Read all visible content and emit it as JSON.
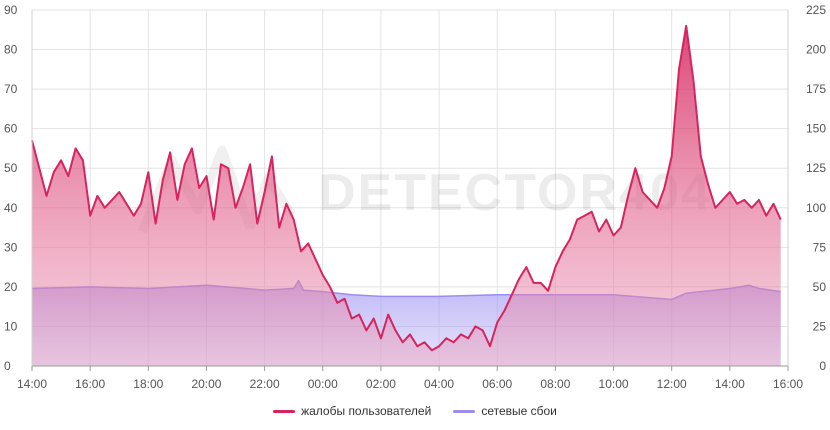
{
  "chart_data": {
    "type": "area",
    "title": "",
    "watermark": "DETECTOR404",
    "x_ticks": [
      "14:00",
      "16:00",
      "18:00",
      "20:00",
      "22:00",
      "00:00",
      "02:00",
      "04:00",
      "06:00",
      "08:00",
      "10:00",
      "12:00",
      "14:00",
      "16:00"
    ],
    "y_left_ticks": [
      "0",
      "10",
      "20",
      "30",
      "40",
      "50",
      "60",
      "70",
      "80",
      "90"
    ],
    "y_right_ticks": [
      "0",
      "25",
      "50",
      "75",
      "100",
      "125",
      "150",
      "175",
      "200",
      "225"
    ],
    "y_left_range": [
      0,
      90
    ],
    "y_right_range": [
      0,
      225
    ],
    "x_range_hours": [
      14,
      40
    ],
    "grid": true,
    "legend_position": "bottom",
    "series": [
      {
        "name": "жалобы пользователей",
        "axis": "left",
        "color": "#d6245f",
        "points": [
          [
            "14:00",
            57
          ],
          [
            "14:15",
            50
          ],
          [
            "14:30",
            43
          ],
          [
            "14:45",
            49
          ],
          [
            "15:00",
            52
          ],
          [
            "15:15",
            48
          ],
          [
            "15:30",
            55
          ],
          [
            "15:45",
            52
          ],
          [
            "16:00",
            38
          ],
          [
            "16:15",
            43
          ],
          [
            "16:30",
            40
          ],
          [
            "16:45",
            42
          ],
          [
            "17:00",
            44
          ],
          [
            "17:15",
            41
          ],
          [
            "17:30",
            38
          ],
          [
            "17:45",
            41
          ],
          [
            "18:00",
            49
          ],
          [
            "18:15",
            36
          ],
          [
            "18:30",
            47
          ],
          [
            "18:45",
            54
          ],
          [
            "19:00",
            42
          ],
          [
            "19:15",
            51
          ],
          [
            "19:30",
            55
          ],
          [
            "19:45",
            45
          ],
          [
            "20:00",
            48
          ],
          [
            "20:15",
            37
          ],
          [
            "20:30",
            51
          ],
          [
            "20:45",
            50
          ],
          [
            "21:00",
            40
          ],
          [
            "21:15",
            45
          ],
          [
            "21:30",
            51
          ],
          [
            "21:45",
            36
          ],
          [
            "22:00",
            44
          ],
          [
            "22:15",
            53
          ],
          [
            "22:30",
            35
          ],
          [
            "22:45",
            41
          ],
          [
            "23:00",
            37
          ],
          [
            "23:15",
            29
          ],
          [
            "23:30",
            31
          ],
          [
            "23:45",
            27
          ],
          [
            "00:00",
            23
          ],
          [
            "00:15",
            20
          ],
          [
            "00:30",
            16
          ],
          [
            "00:45",
            17
          ],
          [
            "01:00",
            12
          ],
          [
            "01:15",
            13
          ],
          [
            "01:30",
            9
          ],
          [
            "01:45",
            12
          ],
          [
            "02:00",
            7
          ],
          [
            "02:15",
            13
          ],
          [
            "02:30",
            9
          ],
          [
            "02:45",
            6
          ],
          [
            "03:00",
            8
          ],
          [
            "03:15",
            5
          ],
          [
            "03:30",
            6
          ],
          [
            "03:45",
            4
          ],
          [
            "04:00",
            5
          ],
          [
            "04:15",
            7
          ],
          [
            "04:30",
            6
          ],
          [
            "04:45",
            8
          ],
          [
            "05:00",
            7
          ],
          [
            "05:15",
            10
          ],
          [
            "05:30",
            9
          ],
          [
            "05:45",
            5
          ],
          [
            "06:00",
            11
          ],
          [
            "06:15",
            14
          ],
          [
            "06:30",
            18
          ],
          [
            "06:45",
            22
          ],
          [
            "07:00",
            25
          ],
          [
            "07:15",
            21
          ],
          [
            "07:30",
            21
          ],
          [
            "07:45",
            19
          ],
          [
            "08:00",
            25
          ],
          [
            "08:15",
            29
          ],
          [
            "08:30",
            32
          ],
          [
            "08:45",
            37
          ],
          [
            "09:00",
            38
          ],
          [
            "09:15",
            39
          ],
          [
            "09:30",
            34
          ],
          [
            "09:45",
            37
          ],
          [
            "10:00",
            33
          ],
          [
            "10:15",
            35
          ],
          [
            "10:30",
            43
          ],
          [
            "10:45",
            50
          ],
          [
            "11:00",
            44
          ],
          [
            "11:15",
            42
          ],
          [
            "11:30",
            40
          ],
          [
            "11:45",
            45
          ],
          [
            "12:00",
            53
          ],
          [
            "12:15",
            75
          ],
          [
            "12:30",
            86
          ],
          [
            "12:45",
            72
          ],
          [
            "13:00",
            53
          ],
          [
            "13:15",
            46
          ],
          [
            "13:30",
            40
          ],
          [
            "13:45",
            42
          ],
          [
            "14:00",
            44
          ],
          [
            "14:15",
            41
          ],
          [
            "14:30",
            42
          ],
          [
            "14:45",
            40
          ],
          [
            "15:00",
            42
          ],
          [
            "15:15",
            38
          ],
          [
            "15:30",
            41
          ],
          [
            "15:45",
            37
          ]
        ]
      },
      {
        "name": "сетевые сбои",
        "axis": "right",
        "color": "#9b8cf0",
        "points": [
          [
            "14:00",
            49
          ],
          [
            "16:00",
            50
          ],
          [
            "18:00",
            49
          ],
          [
            "20:00",
            51
          ],
          [
            "22:00",
            48
          ],
          [
            "23:00",
            49
          ],
          [
            "23:10",
            54
          ],
          [
            "23:20",
            48
          ],
          [
            "00:00",
            47
          ],
          [
            "01:00",
            45
          ],
          [
            "02:00",
            44
          ],
          [
            "04:00",
            44
          ],
          [
            "06:00",
            45
          ],
          [
            "08:00",
            45
          ],
          [
            "10:00",
            45
          ],
          [
            "12:00",
            42
          ],
          [
            "12:30",
            46
          ],
          [
            "14:00",
            49
          ],
          [
            "14:40",
            51
          ],
          [
            "15:00",
            49
          ],
          [
            "15:45",
            47
          ]
        ]
      }
    ]
  }
}
